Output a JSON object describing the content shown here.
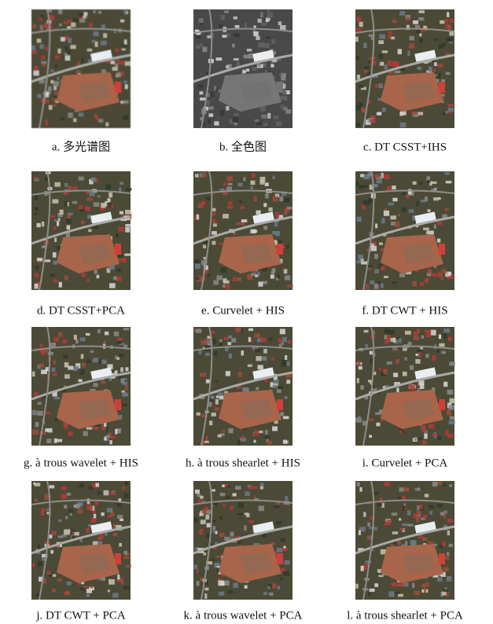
{
  "panels": [
    {
      "caption": "a. 多光谱图"
    },
    {
      "caption": "b. 全色图"
    },
    {
      "caption": "c. DT CSST+IHS"
    },
    {
      "caption": "d. DT CSST+PCA"
    },
    {
      "caption": "e. Curvelet + HIS"
    },
    {
      "caption": "f. DT CWT + HIS"
    },
    {
      "caption": "g. à trous wavelet + HIS"
    },
    {
      "caption": "h. à trous shearlet + HIS"
    },
    {
      "caption": "i. Curvelet + PCA"
    },
    {
      "caption": "j. DT CWT + PCA"
    },
    {
      "caption": "k. à trous wavelet + PCA"
    },
    {
      "caption": "l. à trous shearlet + PCA"
    }
  ]
}
